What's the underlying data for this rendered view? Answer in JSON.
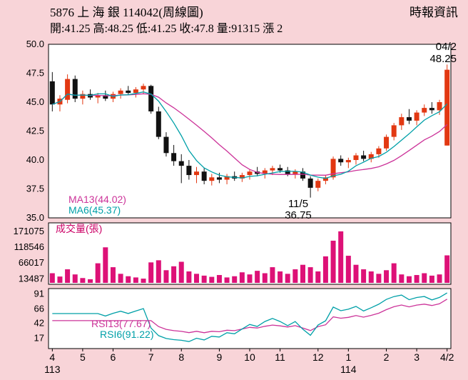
{
  "header": {
    "title": "5876 上 海 銀 114042(周線圖)",
    "source": "時報資訊",
    "ohlc_line": "開:41.25 高:48.25 低:41.25 收:47.8 量:91315 漲 2"
  },
  "price_panel": {
    "legend_ma13": "MA13(44.02)",
    "legend_ma6": "MA6(45.37)",
    "annotation_high_date": "04/2",
    "annotation_high_value": "48.25",
    "annotation_low_date": "11/5",
    "annotation_low_value": "36.75"
  },
  "volume_panel": {
    "label": "成交量(張)"
  },
  "rsi_panel": {
    "legend_rsi13": "RSI13(77.67)",
    "legend_rsi6": "RSI6(91.22)"
  },
  "colors": {
    "background": "#f8d4d8",
    "panel": "#ffffff",
    "border": "#000000",
    "up": "#e23812",
    "down": "#111111",
    "ma13": "#cc3399",
    "ma6": "#00a0a8",
    "rsi13": "#cc3399",
    "rsi6": "#00a0a8",
    "volume_bar": "#dd1177",
    "volume_label": "#cc0066",
    "text": "#000000"
  },
  "chart_data": [
    {
      "type": "candlestick",
      "title": "5876 上海銀 114042(周線圖)",
      "timeframe": "weekly",
      "ylim": [
        35,
        50
      ],
      "yticks": [
        50.0,
        47.5,
        45.0,
        42.5,
        40.0,
        37.5,
        35.0
      ],
      "x_months": [
        {
          "label": "4",
          "week": 0
        },
        {
          "label": "5",
          "week": 4
        },
        {
          "label": "6",
          "week": 8
        },
        {
          "label": "7",
          "week": 13
        },
        {
          "label": "8",
          "week": 17
        },
        {
          "label": "9",
          "week": 22
        },
        {
          "label": "10",
          "week": 26
        },
        {
          "label": "11",
          "week": 30
        },
        {
          "label": "12",
          "week": 35
        },
        {
          "label": "1",
          "week": 39
        },
        {
          "label": "2",
          "week": 44
        },
        {
          "label": "3",
          "week": 48
        },
        {
          "label": "4/2",
          "week": 52
        }
      ],
      "year_labels": [
        {
          "label": "113",
          "week": 0
        },
        {
          "label": "114",
          "week": 39
        }
      ],
      "ma_periods": [
        6,
        13
      ],
      "ma_current": {
        "MA13": 44.02,
        "MA6": 45.37
      },
      "latest": {
        "date": "04/2",
        "open": 41.25,
        "high": 48.25,
        "low": 41.25,
        "close": 47.8,
        "volume": 91315,
        "change": 2
      },
      "low_point": {
        "date": "11/5",
        "low": 36.75
      },
      "candles": [
        [
          46.8,
          47.6,
          44.2,
          44.8
        ],
        [
          44.8,
          45.6,
          44.2,
          45.3
        ],
        [
          45.2,
          47.4,
          44.9,
          47.0
        ],
        [
          47.0,
          47.3,
          45.0,
          45.3
        ],
        [
          45.3,
          46.0,
          44.8,
          45.7
        ],
        [
          45.7,
          46.1,
          45.2,
          45.4
        ],
        [
          45.4,
          45.8,
          44.9,
          45.6
        ],
        [
          45.6,
          46.0,
          45.1,
          45.3
        ],
        [
          45.3,
          45.9,
          45.0,
          45.7
        ],
        [
          45.7,
          46.2,
          45.3,
          46.0
        ],
        [
          46.0,
          46.4,
          45.6,
          45.8
        ],
        [
          45.8,
          46.3,
          45.4,
          46.1
        ],
        [
          46.1,
          46.6,
          45.7,
          46.4
        ],
        [
          46.4,
          46.5,
          44.0,
          44.2
        ],
        [
          44.2,
          44.6,
          41.8,
          42.0
        ],
        [
          42.0,
          42.4,
          40.3,
          40.6
        ],
        [
          40.6,
          41.3,
          39.5,
          39.9
        ],
        [
          39.9,
          40.5,
          38.0,
          39.5
        ],
        [
          39.5,
          40.0,
          38.3,
          38.7
        ],
        [
          38.7,
          39.4,
          38.0,
          39.0
        ],
        [
          39.0,
          39.3,
          37.9,
          38.2
        ],
        [
          38.2,
          38.8,
          37.8,
          38.5
        ],
        [
          38.5,
          38.9,
          38.0,
          38.3
        ],
        [
          38.3,
          38.8,
          37.9,
          38.6
        ],
        [
          38.6,
          39.0,
          38.2,
          38.4
        ],
        [
          38.4,
          38.9,
          38.1,
          38.7
        ],
        [
          38.7,
          39.2,
          38.3,
          39.0
        ],
        [
          39.0,
          39.4,
          38.6,
          38.8
        ],
        [
          38.8,
          39.3,
          38.4,
          39.1
        ],
        [
          39.1,
          39.5,
          38.7,
          39.3
        ],
        [
          39.3,
          39.6,
          38.9,
          39.1
        ],
        [
          39.1,
          39.4,
          38.6,
          38.8
        ],
        [
          38.8,
          39.2,
          38.4,
          39.0
        ],
        [
          39.0,
          39.3,
          38.2,
          38.4
        ],
        [
          38.4,
          38.6,
          36.75,
          37.6
        ],
        [
          37.6,
          38.4,
          37.3,
          38.2
        ],
        [
          38.2,
          38.7,
          37.9,
          38.5
        ],
        [
          38.5,
          40.3,
          38.3,
          40.1
        ],
        [
          40.1,
          40.4,
          39.5,
          39.8
        ],
        [
          39.8,
          40.2,
          39.3,
          40.0
        ],
        [
          40.0,
          40.6,
          39.6,
          40.4
        ],
        [
          40.4,
          40.8,
          39.9,
          40.1
        ],
        [
          40.1,
          40.7,
          39.8,
          40.5
        ],
        [
          40.5,
          41.2,
          40.2,
          41.0
        ],
        [
          41.0,
          42.2,
          40.8,
          42.0
        ],
        [
          42.0,
          43.2,
          41.7,
          43.0
        ],
        [
          43.0,
          44.0,
          42.6,
          43.7
        ],
        [
          43.7,
          44.4,
          43.1,
          43.4
        ],
        [
          43.4,
          44.3,
          43.0,
          44.1
        ],
        [
          44.1,
          44.8,
          43.8,
          44.5
        ],
        [
          44.5,
          45.0,
          44.0,
          44.3
        ],
        [
          44.3,
          45.2,
          43.9,
          45.0
        ],
        [
          41.25,
          48.25,
          41.25,
          47.8
        ]
      ]
    },
    {
      "type": "bar",
      "title": "成交量(張)",
      "yticks": [
        171075,
        118546,
        66017,
        13487
      ],
      "ylim": [
        0,
        185000
      ],
      "values": [
        32000,
        21000,
        45000,
        28000,
        16000,
        12000,
        65000,
        118000,
        52000,
        30000,
        22000,
        18000,
        14000,
        68000,
        75000,
        42000,
        55000,
        70000,
        38000,
        30000,
        24000,
        20000,
        26000,
        18000,
        22000,
        35000,
        28000,
        40000,
        32000,
        52000,
        38000,
        30000,
        45000,
        60000,
        52000,
        38000,
        88000,
        140000,
        171075,
        90000,
        60000,
        45000,
        38000,
        30000,
        42000,
        65000,
        28000,
        22000,
        26000,
        32000,
        24000,
        28000,
        91315
      ]
    },
    {
      "type": "line",
      "title": "RSI",
      "yticks": [
        91,
        66,
        42,
        17
      ],
      "ylim": [
        0,
        100
      ],
      "series": [
        {
          "name": "RSI13",
          "period": 13,
          "current": 77.67
        },
        {
          "name": "RSI6",
          "period": 6,
          "current": 91.22
        }
      ],
      "derived_from": "candles.close"
    }
  ]
}
